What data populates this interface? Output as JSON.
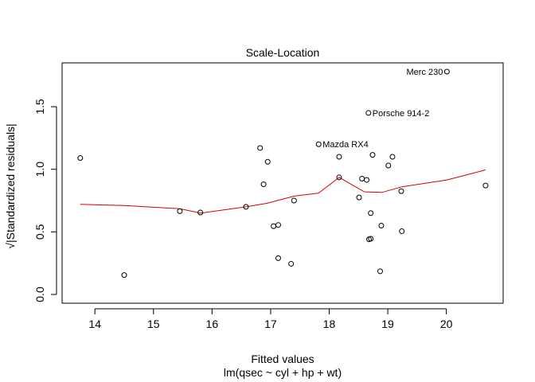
{
  "chart_data": {
    "type": "scatter",
    "title": "Scale-Location",
    "xlabel": "Fitted values",
    "xlabel_sub": "lm(qsec ~ cyl + hp + wt)",
    "ylabel": "√|Standardized residuals|",
    "xlim": [
      13.44,
      20.97
    ],
    "ylim": [
      -0.07,
      1.85
    ],
    "xticks": [
      14,
      15,
      16,
      17,
      18,
      19,
      20
    ],
    "yticks": [
      0.0,
      0.5,
      1.0,
      1.5
    ],
    "ytick_labels": [
      "0.0",
      "0.5",
      "1.0",
      "1.5"
    ],
    "colors": {
      "points": "#000000",
      "smooth": "#d00000",
      "frame": "#000000"
    },
    "points": [
      {
        "x": 13.75,
        "y": 1.09
      },
      {
        "x": 14.5,
        "y": 0.155
      },
      {
        "x": 15.45,
        "y": 0.665
      },
      {
        "x": 15.8,
        "y": 0.655
      },
      {
        "x": 16.58,
        "y": 0.7
      },
      {
        "x": 16.82,
        "y": 1.17
      },
      {
        "x": 16.88,
        "y": 0.88
      },
      {
        "x": 16.95,
        "y": 1.06
      },
      {
        "x": 17.05,
        "y": 0.545
      },
      {
        "x": 17.13,
        "y": 0.555
      },
      {
        "x": 17.13,
        "y": 0.29
      },
      {
        "x": 17.35,
        "y": 0.245
      },
      {
        "x": 17.4,
        "y": 0.75
      },
      {
        "x": 17.82,
        "y": 1.2,
        "label": "Mazda RX4"
      },
      {
        "x": 18.17,
        "y": 1.1
      },
      {
        "x": 18.17,
        "y": 0.935
      },
      {
        "x": 18.51,
        "y": 0.775
      },
      {
        "x": 18.56,
        "y": 0.925
      },
      {
        "x": 18.64,
        "y": 0.915
      },
      {
        "x": 18.67,
        "y": 1.45,
        "label": "Porsche 914-2"
      },
      {
        "x": 18.68,
        "y": 0.44
      },
      {
        "x": 18.71,
        "y": 0.445
      },
      {
        "x": 18.71,
        "y": 0.65
      },
      {
        "x": 18.74,
        "y": 1.115
      },
      {
        "x": 18.87,
        "y": 0.185
      },
      {
        "x": 18.89,
        "y": 0.55
      },
      {
        "x": 19.01,
        "y": 1.03
      },
      {
        "x": 19.08,
        "y": 1.1
      },
      {
        "x": 19.23,
        "y": 0.825
      },
      {
        "x": 19.24,
        "y": 0.505
      },
      {
        "x": 20.01,
        "y": 1.78,
        "label": "Merc 230"
      },
      {
        "x": 20.67,
        "y": 0.87
      }
    ],
    "smooth": [
      {
        "x": 13.75,
        "y": 0.72
      },
      {
        "x": 14.5,
        "y": 0.71
      },
      {
        "x": 15.45,
        "y": 0.685
      },
      {
        "x": 15.8,
        "y": 0.65
      },
      {
        "x": 16.58,
        "y": 0.7
      },
      {
        "x": 16.95,
        "y": 0.73
      },
      {
        "x": 17.4,
        "y": 0.785
      },
      {
        "x": 17.82,
        "y": 0.81
      },
      {
        "x": 18.17,
        "y": 0.935
      },
      {
        "x": 18.6,
        "y": 0.82
      },
      {
        "x": 18.9,
        "y": 0.815
      },
      {
        "x": 19.24,
        "y": 0.86
      },
      {
        "x": 20.01,
        "y": 0.915
      },
      {
        "x": 20.67,
        "y": 0.995
      }
    ]
  }
}
